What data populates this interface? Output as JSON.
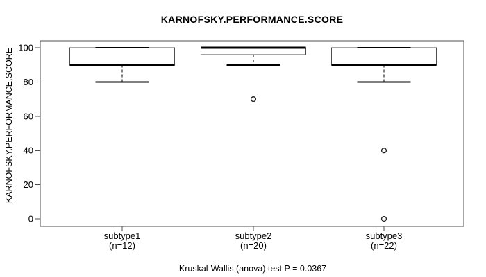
{
  "page": {
    "background": "#ffffff"
  },
  "chart_data": {
    "type": "boxplot",
    "title": "KARNOFSKY.PERFORMANCE.SCORE",
    "ylabel": "KARNOFSKY.PERFORMANCE.SCORE",
    "xlabel": "",
    "caption": "Kruskal-Wallis (anova) test P = 0.0367",
    "ylim": [
      0,
      100
    ],
    "yticks": [
      0,
      20,
      40,
      60,
      80,
      100
    ],
    "grid": false,
    "legend": "none",
    "colors": {
      "background": "#ffffff",
      "box_fill": "#ffffff",
      "thin_line": "#4d4d4d",
      "emphasis_line": "#000000",
      "text": "#000000"
    },
    "groups": [
      {
        "label": "subtype1",
        "count_label": "(n=12)",
        "n": 12,
        "whisker_low": 80,
        "q1": 90,
        "median": 90,
        "q3": 100,
        "whisker_high": 100,
        "outliers": []
      },
      {
        "label": "subtype2",
        "count_label": "(n=20)",
        "n": 20,
        "whisker_low": 90,
        "q1": 96,
        "median": 100,
        "q3": 100,
        "whisker_high": 100,
        "outliers": [
          70
        ]
      },
      {
        "label": "subtype3",
        "count_label": "(n=22)",
        "n": 22,
        "whisker_low": 80,
        "q1": 90,
        "median": 90,
        "q3": 100,
        "whisker_high": 100,
        "outliers": [
          40,
          0
        ]
      }
    ]
  }
}
